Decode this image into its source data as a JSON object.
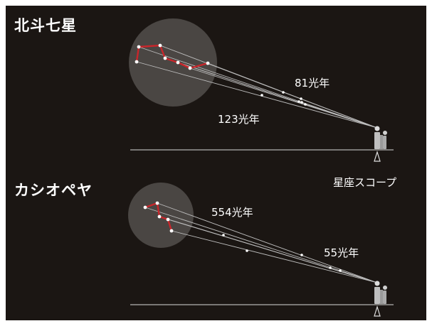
{
  "colors": {
    "background": "#1b1613",
    "circle": "#4a4643",
    "constellation_line": "#c8262b",
    "sight_line": "#bdbdbd",
    "star": "#ffffff"
  },
  "panels": [
    {
      "title": "北斗七星",
      "distance_labels": [
        "81光年",
        "123光年"
      ]
    },
    {
      "title": "カシオペヤ",
      "distance_labels": [
        "554光年",
        "55光年"
      ]
    }
  ],
  "telescope_label": "星座スコープ"
}
